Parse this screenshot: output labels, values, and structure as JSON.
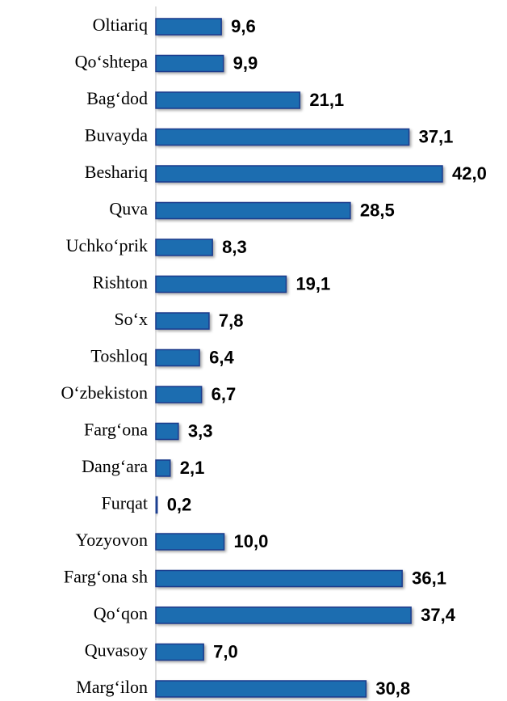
{
  "chart_data": {
    "type": "bar",
    "orientation": "horizontal",
    "color": "#1f6db0",
    "categories": [
      "Oltiariq",
      "Qo‘shtepa",
      "Bag‘dod",
      "Buvayda",
      "Beshariq",
      "Quva",
      "Uchko‘prik",
      "Rishton",
      "So‘x",
      "Toshloq",
      "O‘zbekiston",
      "Farg‘ona",
      "Dang‘ara",
      "Furqat",
      "Yozyovon",
      "Farg‘ona sh",
      "Qo‘qon",
      "Quvasoy",
      "Marg‘ilon"
    ],
    "values": [
      9.6,
      9.9,
      21.1,
      37.1,
      42.0,
      28.5,
      8.3,
      19.1,
      7.8,
      6.4,
      6.7,
      3.3,
      2.1,
      0.2,
      10.0,
      36.1,
      37.4,
      7.0,
      30.8
    ],
    "value_labels": [
      "9,6",
      "9,9",
      "21,1",
      "37,1",
      "42,0",
      "28,5",
      "8,3",
      "19,1",
      "7,8",
      "6,4",
      "6,7",
      "3,3",
      "2,1",
      "0,2",
      "10,0",
      "36,1",
      "37,4",
      "7,0",
      "30,8"
    ]
  }
}
